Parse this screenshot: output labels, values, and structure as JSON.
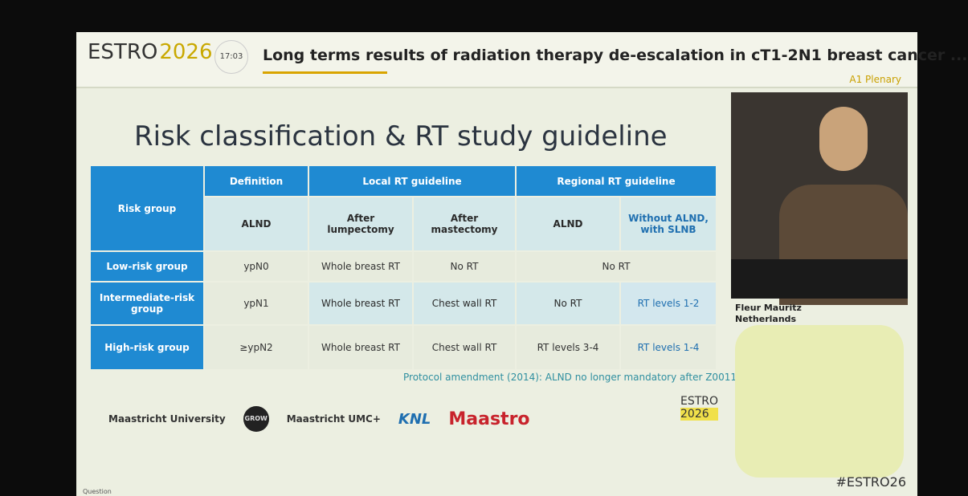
{
  "header": {
    "logo_left": "ESTRO",
    "logo_right": "2026",
    "time": "17:03",
    "title": "Long terms results of radiation therapy de-escalation in cT1-2N1 breast cancer ...",
    "session": "A1 Plenary"
  },
  "slide": {
    "title": "Risk classification & RT study guideline",
    "table": {
      "header_top": [
        "Risk group",
        "Definition",
        "Local RT guideline",
        "Regional RT guideline"
      ],
      "header_sub": [
        "ALND",
        "After lumpectomy",
        "After mastectomy",
        "ALND",
        "Without ALND, with SLNB"
      ],
      "rows": [
        [
          "Low-risk group",
          "ypN0",
          "Whole breast RT",
          "No RT",
          "No RT"
        ],
        [
          "Intermediate-risk group",
          "ypN1",
          "Whole breast RT",
          "Chest wall RT",
          "No RT",
          "RT levels 1-2"
        ],
        [
          "High-risk group",
          "≥ypN2",
          "Whole breast RT",
          "Chest wall RT",
          "RT levels 3-4",
          "RT levels 1-4"
        ]
      ]
    },
    "note": "Protocol amendment (2014): ALND no longer mandatory after Z0011",
    "logos": [
      "Maastricht University",
      "GROW",
      "Maastricht UMC+",
      "KNL",
      "Maastro"
    ],
    "corner_logo": [
      "ESTRO",
      "2026"
    ]
  },
  "speaker": {
    "name": "Fleur Mauritz",
    "country": "Netherlands"
  },
  "footer": {
    "hashtag": "#ESTRO26",
    "question": "Question"
  }
}
